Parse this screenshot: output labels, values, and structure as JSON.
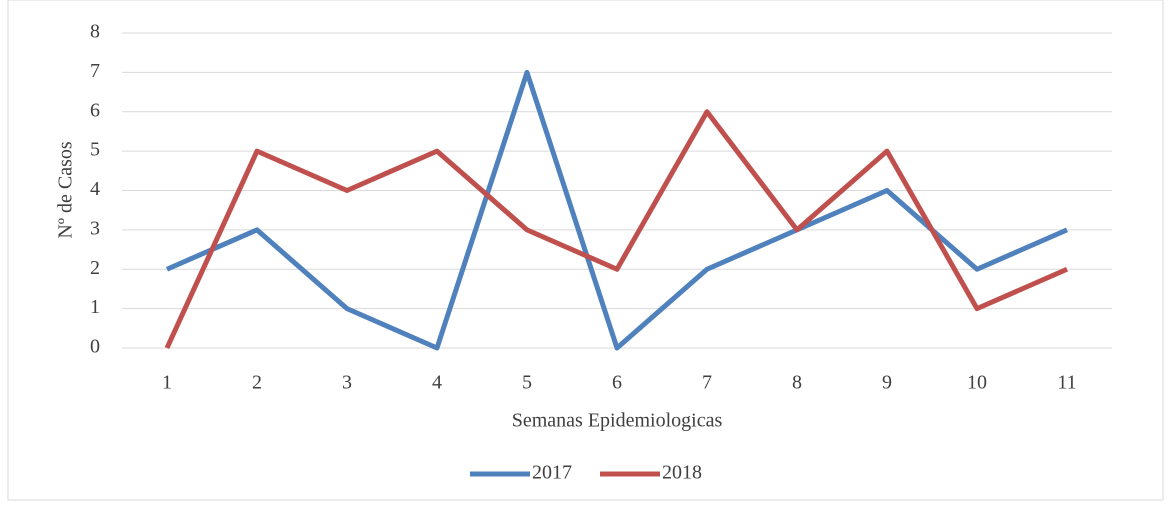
{
  "chart_data": {
    "type": "line",
    "x_label": "Semanas Epidemiologicas",
    "y_label": "Nº de Casos",
    "categories": [
      "1",
      "2",
      "3",
      "4",
      "5",
      "6",
      "7",
      "8",
      "9",
      "10",
      "11"
    ],
    "series": [
      {
        "name": "2017",
        "color": "#4f81bd",
        "values": [
          2,
          3,
          1,
          0,
          7,
          0,
          2,
          3,
          4,
          2,
          3
        ]
      },
      {
        "name": "2018",
        "color": "#c0504d",
        "values": [
          0,
          5,
          4,
          5,
          3,
          2,
          6,
          3,
          5,
          1,
          2
        ]
      }
    ],
    "ylim": [
      0,
      8
    ],
    "yticks": [
      0,
      1,
      2,
      3,
      4,
      5,
      6,
      7,
      8
    ],
    "grid": true,
    "legend": "bottom"
  }
}
